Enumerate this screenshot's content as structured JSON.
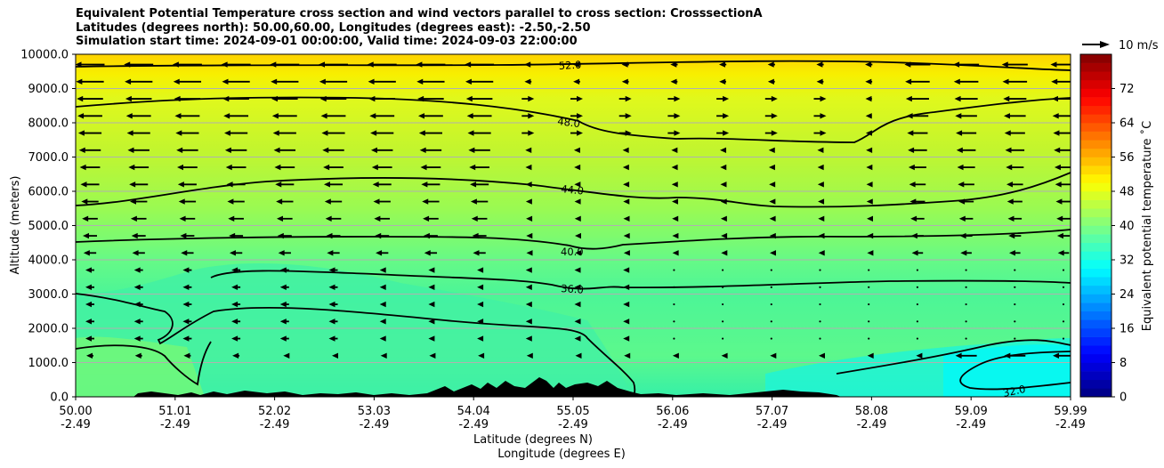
{
  "chart_data": {
    "type": "heatmap",
    "title_lines": [
      "Equivalent Potential Temperature cross section and wind vectors parallel to cross section: CrosssectionA",
      "Latitudes (degrees north): 50.00,60.00, Longitudes (degrees east): -2.50,-2.50",
      "Simulation start time: 2024-09-01 00:00:00, Valid time: 2024-09-03 22:00:00"
    ],
    "ylabel": "Altitude (meters)",
    "xlabel_1": "Latitude (degrees N)",
    "xlabel_2": "Longitude (degrees E)",
    "ylim": [
      0,
      10000
    ],
    "yticks": [
      0,
      1000,
      2000,
      3000,
      4000,
      5000,
      6000,
      7000,
      8000,
      9000,
      10000
    ],
    "ytick_labels": [
      "0.0",
      "1000.0",
      "2000.0",
      "3000.0",
      "4000.0",
      "5000.0",
      "6000.0",
      "7000.0",
      "8000.0",
      "9000.0",
      "10000.0"
    ],
    "xlim": [
      50.0,
      59.99
    ],
    "xticks_lat": [
      "50.00",
      "51.01",
      "52.02",
      "53.03",
      "54.04",
      "55.05",
      "56.06",
      "57.07",
      "58.08",
      "59.09",
      "59.99"
    ],
    "xticks_lon": [
      "-2.49",
      "-2.49",
      "-2.49",
      "-2.49",
      "-2.49",
      "-2.49",
      "-2.49",
      "-2.49",
      "-2.49",
      "-2.49",
      "-2.49"
    ],
    "grid": "horizontal",
    "colorbar": {
      "label": "Equivalent potential temperature ˚C",
      "range": [
        0,
        80
      ],
      "tick_values": [
        0,
        8,
        16,
        24,
        32,
        40,
        48,
        56,
        64,
        72
      ],
      "tick_labels": [
        "0",
        "8",
        "16",
        "24",
        "32",
        "40",
        "48",
        "56",
        "64",
        "72"
      ]
    },
    "contours": [
      {
        "label": "52.0",
        "altitude_m": 9600
      },
      {
        "label": "48.0",
        "altitude_m": 8000
      },
      {
        "label": "44.0",
        "altitude_m": 6000
      },
      {
        "label": "40.0",
        "altitude_m": 4000
      },
      {
        "label": "36.0",
        "altitude_m": 3200
      },
      {
        "label": "32.0",
        "altitude_m": 500
      }
    ],
    "wind_reference": {
      "label": "10 m/s",
      "speed": 10
    }
  }
}
